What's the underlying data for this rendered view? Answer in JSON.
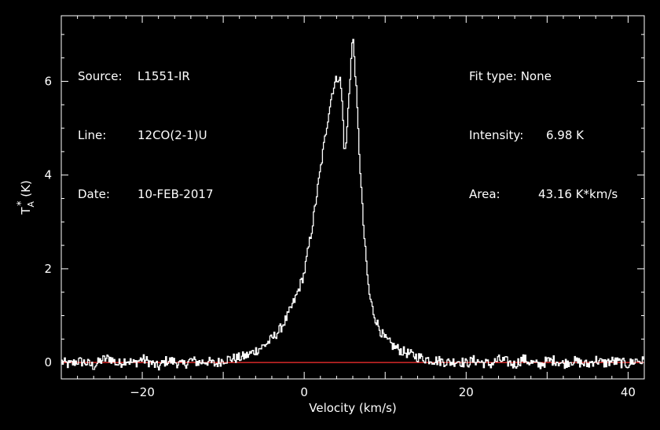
{
  "info_left": [
    {
      "label": "Source:",
      "value": "L1551-IR"
    },
    {
      "label": "Line:",
      "value": "12CO(2-1)U"
    },
    {
      "label": "Date:",
      "value": "10-FEB-2017"
    }
  ],
  "info_right": [
    {
      "label": "Fit type:",
      "value": "None"
    },
    {
      "label": "Intensity:",
      "value": "6.98 K"
    },
    {
      "label": "Area:",
      "value": "43.16 K*km/s"
    }
  ],
  "chart_data": {
    "type": "line",
    "xlabel": "Velocity (km/s)",
    "ylabel": "T_A^* (K)",
    "xlim": [
      -30,
      42
    ],
    "ylim": [
      -0.35,
      7.4
    ],
    "xticks": [
      -20,
      0,
      20,
      40
    ],
    "xtick_labels": [
      "−20",
      "0",
      "20",
      "40"
    ],
    "yticks": [
      0,
      2,
      4,
      6
    ],
    "ytick_labels": [
      "0",
      "2",
      "4",
      "6"
    ],
    "baseline": 0,
    "series": [
      {
        "style": "step",
        "x": [
          -30,
          -29,
          -28,
          -27,
          -26,
          -25,
          -24,
          -23,
          -22,
          -21,
          -20,
          -19,
          -18,
          -17,
          -16,
          -15,
          -14,
          -13,
          -12,
          -11,
          -10,
          -9,
          -8,
          -7,
          -6,
          -5,
          -4,
          -3,
          -2,
          -1,
          0,
          0.5,
          1,
          1.5,
          2,
          2.5,
          3,
          3.5,
          4,
          4.25,
          4.5,
          4.75,
          5,
          5.25,
          5.5,
          5.75,
          6,
          6.25,
          6.5,
          6.75,
          7,
          7.25,
          7.5,
          7.75,
          8,
          8.5,
          9,
          9.5,
          10,
          11,
          12,
          13,
          14,
          15,
          16,
          17,
          18,
          19,
          20,
          21,
          22,
          23,
          24,
          25,
          26,
          27,
          28,
          29,
          30,
          31,
          32,
          33,
          34,
          35,
          36,
          37,
          38,
          39,
          40,
          41,
          42
        ],
        "y": [
          0.02,
          -0.05,
          0.03,
          0.0,
          -0.08,
          0.05,
          0.1,
          -0.04,
          0.06,
          -0.02,
          0.08,
          0.0,
          -0.1,
          0.04,
          0.02,
          -0.06,
          0.05,
          0.0,
          0.03,
          -0.04,
          0.06,
          0.08,
          0.1,
          0.15,
          0.25,
          0.35,
          0.5,
          0.7,
          1.0,
          1.4,
          1.9,
          2.4,
          2.9,
          3.5,
          4.1,
          4.7,
          5.3,
          5.8,
          6.05,
          6.1,
          6.0,
          5.4,
          4.4,
          4.8,
          5.6,
          6.3,
          6.98,
          6.4,
          5.6,
          4.7,
          3.9,
          3.1,
          2.5,
          2.0,
          1.5,
          1.1,
          0.85,
          0.65,
          0.5,
          0.35,
          0.25,
          0.18,
          0.12,
          0.08,
          0.05,
          0.03,
          0.0,
          0.04,
          -0.02,
          0.05,
          0.0,
          -0.04,
          0.06,
          0.02,
          -0.05,
          0.08,
          0.0,
          -0.06,
          0.03,
          0.05,
          -0.03,
          0.04,
          0.0,
          -0.05,
          0.06,
          -0.02,
          0.03,
          0.0,
          -0.04,
          0.05,
          0.02
        ]
      }
    ],
    "colors": {
      "spectrum": "#ffffff",
      "baseline": "#ff3030",
      "axes": "#ffffff"
    }
  }
}
